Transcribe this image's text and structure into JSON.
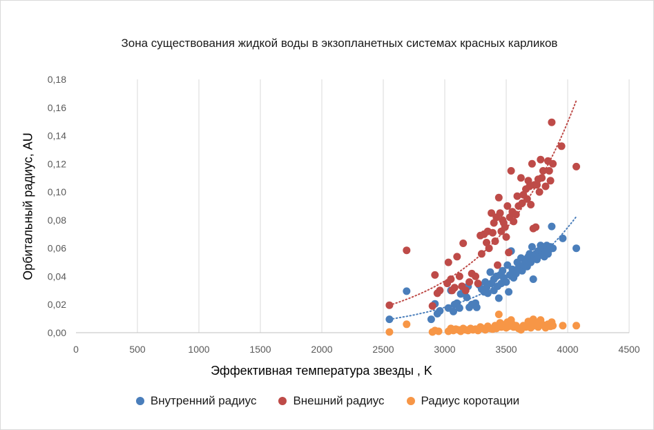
{
  "chart_data": {
    "type": "scatter",
    "title": "Зона существования жидкой воды в экзопланетных системах красных карликов",
    "xlabel": "Эффективная температура звезды , K",
    "ylabel": "Орбитальный радиус, AU",
    "xlim": [
      0,
      4500
    ],
    "ylim": [
      0,
      0.18
    ],
    "xticks": [
      0,
      500,
      1000,
      1500,
      2000,
      2500,
      3000,
      3500,
      4000,
      4500
    ],
    "xtick_labels": [
      "0",
      "500",
      "1000",
      "1500",
      "2000",
      "2500",
      "3000",
      "3500",
      "4000",
      "4500"
    ],
    "yticks": [
      0,
      0.02,
      0.04,
      0.06,
      0.08,
      0.1,
      0.12,
      0.14,
      0.16,
      0.18
    ],
    "ytick_labels": [
      "0,00",
      "0,02",
      "0,04",
      "0,06",
      "0,08",
      "0,10",
      "0,12",
      "0,14",
      "0,16",
      "0,18"
    ],
    "grid": "vertical",
    "legend_position": "bottom",
    "series": [
      {
        "name": "Внутренний радиус",
        "color": "#4a7ebb",
        "points": [
          [
            2550,
            0.0095
          ],
          [
            2690,
            0.0295
          ],
          [
            2890,
            0.0095
          ],
          [
            2920,
            0.0205
          ],
          [
            2940,
            0.0135
          ],
          [
            2960,
            0.0155
          ],
          [
            3030,
            0.0175
          ],
          [
            3050,
            0.03
          ],
          [
            3070,
            0.015
          ],
          [
            3080,
            0.02
          ],
          [
            3100,
            0.021
          ],
          [
            3120,
            0.0175
          ],
          [
            3130,
            0.0275
          ],
          [
            3150,
            0.032
          ],
          [
            3160,
            0.028
          ],
          [
            3180,
            0.025
          ],
          [
            3190,
            0.033
          ],
          [
            3200,
            0.018
          ],
          [
            3220,
            0.02
          ],
          [
            3250,
            0.021
          ],
          [
            3260,
            0.018
          ],
          [
            3280,
            0.034
          ],
          [
            3300,
            0.031
          ],
          [
            3320,
            0.029
          ],
          [
            3330,
            0.036
          ],
          [
            3340,
            0.032
          ],
          [
            3350,
            0.028
          ],
          [
            3370,
            0.043
          ],
          [
            3380,
            0.035
          ],
          [
            3400,
            0.03
          ],
          [
            3400,
            0.038
          ],
          [
            3420,
            0.04
          ],
          [
            3430,
            0.033
          ],
          [
            3440,
            0.0245
          ],
          [
            3450,
            0.041
          ],
          [
            3460,
            0.035
          ],
          [
            3470,
            0.044
          ],
          [
            3480,
            0.039
          ],
          [
            3500,
            0.036
          ],
          [
            3510,
            0.048
          ],
          [
            3520,
            0.029
          ],
          [
            3530,
            0.041
          ],
          [
            3540,
            0.058
          ],
          [
            3550,
            0.045
          ],
          [
            3560,
            0.039
          ],
          [
            3580,
            0.042
          ],
          [
            3590,
            0.05
          ],
          [
            3600,
            0.046
          ],
          [
            3620,
            0.053
          ],
          [
            3630,
            0.044
          ],
          [
            3640,
            0.048
          ],
          [
            3650,
            0.052
          ],
          [
            3660,
            0.05
          ],
          [
            3670,
            0.047
          ],
          [
            3680,
            0.054
          ],
          [
            3690,
            0.056
          ],
          [
            3700,
            0.05
          ],
          [
            3710,
            0.061
          ],
          [
            3720,
            0.038
          ],
          [
            3730,
            0.053
          ],
          [
            3740,
            0.056
          ],
          [
            3750,
            0.052
          ],
          [
            3760,
            0.058
          ],
          [
            3770,
            0.055
          ],
          [
            3780,
            0.062
          ],
          [
            3790,
            0.057
          ],
          [
            3800,
            0.06
          ],
          [
            3810,
            0.054
          ],
          [
            3820,
            0.058
          ],
          [
            3830,
            0.062
          ],
          [
            3840,
            0.056
          ],
          [
            3850,
            0.059
          ],
          [
            3860,
            0.061
          ],
          [
            3870,
            0.0755
          ],
          [
            3880,
            0.06
          ],
          [
            3960,
            0.067
          ],
          [
            4070,
            0.06
          ]
        ]
      },
      {
        "name": "Внешний радиус",
        "color": "#be4b48",
        "points": [
          [
            2550,
            0.0195
          ],
          [
            2690,
            0.0585
          ],
          [
            2900,
            0.019
          ],
          [
            2920,
            0.041
          ],
          [
            2940,
            0.028
          ],
          [
            2960,
            0.03
          ],
          [
            3020,
            0.035
          ],
          [
            3030,
            0.05
          ],
          [
            3050,
            0.038
          ],
          [
            3060,
            0.03
          ],
          [
            3080,
            0.032
          ],
          [
            3100,
            0.054
          ],
          [
            3120,
            0.04
          ],
          [
            3140,
            0.033
          ],
          [
            3150,
            0.0635
          ],
          [
            3170,
            0.03
          ],
          [
            3200,
            0.036
          ],
          [
            3220,
            0.042
          ],
          [
            3250,
            0.04
          ],
          [
            3270,
            0.035
          ],
          [
            3290,
            0.069
          ],
          [
            3300,
            0.056
          ],
          [
            3320,
            0.07
          ],
          [
            3340,
            0.064
          ],
          [
            3350,
            0.072
          ],
          [
            3360,
            0.06
          ],
          [
            3380,
            0.085
          ],
          [
            3390,
            0.071
          ],
          [
            3400,
            0.078
          ],
          [
            3410,
            0.065
          ],
          [
            3420,
            0.082
          ],
          [
            3430,
            0.048
          ],
          [
            3440,
            0.096
          ],
          [
            3450,
            0.085
          ],
          [
            3460,
            0.072
          ],
          [
            3470,
            0.08
          ],
          [
            3480,
            0.078
          ],
          [
            3490,
            0.075
          ],
          [
            3500,
            0.068
          ],
          [
            3510,
            0.09
          ],
          [
            3520,
            0.057
          ],
          [
            3530,
            0.082
          ],
          [
            3540,
            0.115
          ],
          [
            3550,
            0.086
          ],
          [
            3560,
            0.079
          ],
          [
            3580,
            0.084
          ],
          [
            3590,
            0.097
          ],
          [
            3600,
            0.09
          ],
          [
            3620,
            0.11
          ],
          [
            3630,
            0.092
          ],
          [
            3640,
            0.098
          ],
          [
            3660,
            0.102
          ],
          [
            3670,
            0.095
          ],
          [
            3680,
            0.108
          ],
          [
            3690,
            0.104
          ],
          [
            3700,
            0.091
          ],
          [
            3710,
            0.12
          ],
          [
            3720,
            0.074
          ],
          [
            3730,
            0.105
          ],
          [
            3740,
            0.075
          ],
          [
            3750,
            0.105
          ],
          [
            3760,
            0.109
          ],
          [
            3770,
            0.1
          ],
          [
            3780,
            0.123
          ],
          [
            3790,
            0.11
          ],
          [
            3800,
            0.115
          ],
          [
            3820,
            0.104
          ],
          [
            3840,
            0.122
          ],
          [
            3850,
            0.115
          ],
          [
            3860,
            0.108
          ],
          [
            3870,
            0.1495
          ],
          [
            3880,
            0.12
          ],
          [
            3950,
            0.1325
          ],
          [
            4070,
            0.118
          ]
        ]
      },
      {
        "name": "Радиус коротации",
        "color": "#f79646",
        "points": [
          [
            2550,
            0.0005
          ],
          [
            2690,
            0.006
          ],
          [
            2900,
            0.0005
          ],
          [
            2920,
            0.0015
          ],
          [
            2950,
            0.001
          ],
          [
            3030,
            0.001
          ],
          [
            3050,
            0.003
          ],
          [
            3070,
            0.0015
          ],
          [
            3090,
            0.0025
          ],
          [
            3110,
            0.002
          ],
          [
            3130,
            0.001
          ],
          [
            3150,
            0.003
          ],
          [
            3170,
            0.002
          ],
          [
            3190,
            0.0015
          ],
          [
            3210,
            0.003
          ],
          [
            3230,
            0.002
          ],
          [
            3250,
            0.0025
          ],
          [
            3270,
            0.0015
          ],
          [
            3290,
            0.004
          ],
          [
            3310,
            0.003
          ],
          [
            3330,
            0.002
          ],
          [
            3350,
            0.0045
          ],
          [
            3370,
            0.003
          ],
          [
            3390,
            0.0025
          ],
          [
            3410,
            0.005
          ],
          [
            3420,
            0.003
          ],
          [
            3440,
            0.013
          ],
          [
            3450,
            0.007
          ],
          [
            3460,
            0.004
          ],
          [
            3480,
            0.0055
          ],
          [
            3500,
            0.0035
          ],
          [
            3510,
            0.0075
          ],
          [
            3520,
            0.0045
          ],
          [
            3540,
            0.009
          ],
          [
            3550,
            0.006
          ],
          [
            3560,
            0.004
          ],
          [
            3580,
            0.005
          ],
          [
            3600,
            0.003
          ],
          [
            3620,
            0.002
          ],
          [
            3640,
            0.005
          ],
          [
            3660,
            0.004
          ],
          [
            3680,
            0.008
          ],
          [
            3690,
            0.006
          ],
          [
            3700,
            0.0035
          ],
          [
            3720,
            0.0095
          ],
          [
            3730,
            0.005
          ],
          [
            3750,
            0.007
          ],
          [
            3760,
            0.004
          ],
          [
            3780,
            0.009
          ],
          [
            3800,
            0.0055
          ],
          [
            3820,
            0.0035
          ],
          [
            3840,
            0.006
          ],
          [
            3860,
            0.0045
          ],
          [
            3870,
            0.0075
          ],
          [
            3880,
            0.005
          ],
          [
            3960,
            0.005
          ],
          [
            4070,
            0.005
          ]
        ]
      }
    ],
    "trendlines": [
      {
        "series": "Внутренний радиус",
        "type": "exponential",
        "color": "#4a7ebb",
        "x_range": [
          2550,
          4070
        ],
        "y_start": 0.0095,
        "y_end": 0.0825
      },
      {
        "series": "Внешний радиус",
        "type": "exponential",
        "color": "#be4b48",
        "x_range": [
          2550,
          4070
        ],
        "y_start": 0.0195,
        "y_end": 0.165
      }
    ]
  }
}
